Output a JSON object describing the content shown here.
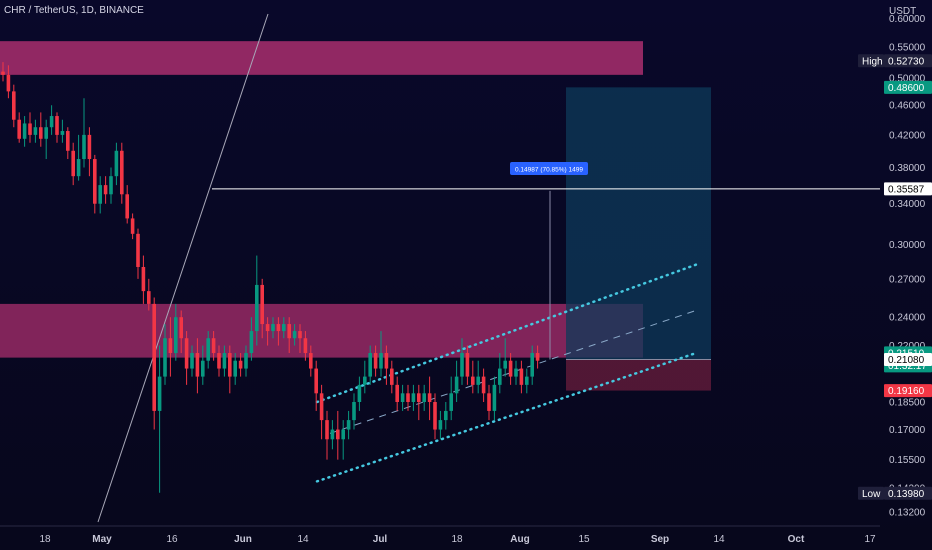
{
  "header": {
    "title": "CHR / TetherUS, 1D, BINANCE"
  },
  "axis": {
    "currency": "USDT"
  },
  "chart_data": {
    "type": "candlestick",
    "x_labels": [
      "18",
      "May",
      "16",
      "Jun",
      "14",
      "Jul",
      "18",
      "Aug",
      "15",
      "Sep",
      "14",
      "Oct",
      "17"
    ],
    "y_ticks": [
      "0.60000",
      "0.55000",
      "0.50000",
      "0.46000",
      "0.42000",
      "0.38000",
      "0.34000",
      "0.30000",
      "0.27000",
      "0.24000",
      "0.22000",
      "0.18500",
      "0.17000",
      "0.15500",
      "0.14200",
      "0.13200"
    ],
    "ylim": [
      0.128,
      0.62
    ],
    "y_scale": "log",
    "supply_zone_upper": {
      "low": 0.505,
      "high": 0.56
    },
    "supply_zone_lower": {
      "low": 0.212,
      "high": 0.25
    },
    "horizontal_line": 0.35587,
    "measure_label": "0.14987 (70.85%) 1499",
    "position": {
      "entry": 0.2108,
      "target": 0.486,
      "stop": 0.1916
    },
    "price_labels": [
      {
        "label": "High",
        "value": "0.52730",
        "color": "#1f1f3a"
      },
      {
        "label": "",
        "value": "0.48600",
        "color": "#089981"
      },
      {
        "label": "",
        "value": "0.35587",
        "color": "#ffffff"
      },
      {
        "label": "",
        "value": "0.21510",
        "sub": "01:32:17",
        "color": "#089981"
      },
      {
        "label": "",
        "value": "0.21080",
        "color": "#ffffff"
      },
      {
        "label": "",
        "value": "0.19160",
        "color": "#f23645"
      },
      {
        "label": "Low",
        "value": "0.13980",
        "color": "#1f1f3a"
      }
    ],
    "colors": {
      "up": "#089981",
      "down": "#f23645",
      "zone": "#b03070",
      "channel": "#45c8e0"
    },
    "candles": [
      [
        0.51,
        0.505,
        0.525,
        0.495
      ],
      [
        0.505,
        0.48,
        0.52,
        0.47
      ],
      [
        0.48,
        0.44,
        0.49,
        0.43
      ],
      [
        0.44,
        0.415,
        0.45,
        0.41
      ],
      [
        0.415,
        0.435,
        0.445,
        0.405
      ],
      [
        0.435,
        0.42,
        0.45,
        0.41
      ],
      [
        0.42,
        0.43,
        0.44,
        0.41
      ],
      [
        0.43,
        0.415,
        0.45,
        0.405
      ],
      [
        0.415,
        0.43,
        0.44,
        0.39
      ],
      [
        0.43,
        0.445,
        0.46,
        0.42
      ],
      [
        0.445,
        0.42,
        0.45,
        0.41
      ],
      [
        0.42,
        0.425,
        0.44,
        0.41
      ],
      [
        0.425,
        0.4,
        0.43,
        0.39
      ],
      [
        0.4,
        0.37,
        0.41,
        0.36
      ],
      [
        0.37,
        0.39,
        0.42,
        0.365
      ],
      [
        0.39,
        0.42,
        0.47,
        0.38
      ],
      [
        0.42,
        0.39,
        0.43,
        0.37
      ],
      [
        0.39,
        0.34,
        0.395,
        0.33
      ],
      [
        0.34,
        0.36,
        0.37,
        0.33
      ],
      [
        0.36,
        0.35,
        0.37,
        0.34
      ],
      [
        0.35,
        0.37,
        0.38,
        0.34
      ],
      [
        0.37,
        0.4,
        0.41,
        0.36
      ],
      [
        0.4,
        0.35,
        0.41,
        0.34
      ],
      [
        0.35,
        0.325,
        0.36,
        0.32
      ],
      [
        0.325,
        0.31,
        0.33,
        0.305
      ],
      [
        0.31,
        0.28,
        0.315,
        0.27
      ],
      [
        0.28,
        0.26,
        0.29,
        0.25
      ],
      [
        0.26,
        0.25,
        0.27,
        0.245
      ],
      [
        0.25,
        0.18,
        0.255,
        0.17
      ],
      [
        0.18,
        0.2,
        0.22,
        0.14
      ],
      [
        0.2,
        0.225,
        0.235,
        0.195
      ],
      [
        0.225,
        0.215,
        0.24,
        0.2
      ],
      [
        0.215,
        0.24,
        0.25,
        0.21
      ],
      [
        0.24,
        0.225,
        0.245,
        0.215
      ],
      [
        0.225,
        0.205,
        0.23,
        0.195
      ],
      [
        0.205,
        0.215,
        0.22,
        0.2
      ],
      [
        0.215,
        0.2,
        0.225,
        0.19
      ],
      [
        0.2,
        0.21,
        0.22,
        0.195
      ],
      [
        0.21,
        0.225,
        0.23,
        0.205
      ],
      [
        0.225,
        0.215,
        0.23,
        0.21
      ],
      [
        0.215,
        0.205,
        0.22,
        0.2
      ],
      [
        0.205,
        0.215,
        0.22,
        0.2
      ],
      [
        0.215,
        0.2,
        0.22,
        0.19
      ],
      [
        0.2,
        0.21,
        0.215,
        0.195
      ],
      [
        0.21,
        0.205,
        0.215,
        0.2
      ],
      [
        0.205,
        0.215,
        0.22,
        0.2
      ],
      [
        0.215,
        0.23,
        0.24,
        0.21
      ],
      [
        0.23,
        0.265,
        0.29,
        0.22
      ],
      [
        0.265,
        0.235,
        0.27,
        0.225
      ],
      [
        0.235,
        0.23,
        0.24,
        0.22
      ],
      [
        0.23,
        0.235,
        0.24,
        0.225
      ],
      [
        0.235,
        0.23,
        0.24,
        0.22
      ],
      [
        0.23,
        0.235,
        0.24,
        0.225
      ],
      [
        0.235,
        0.225,
        0.24,
        0.215
      ],
      [
        0.225,
        0.23,
        0.235,
        0.22
      ],
      [
        0.23,
        0.225,
        0.235,
        0.215
      ],
      [
        0.225,
        0.215,
        0.23,
        0.21
      ],
      [
        0.215,
        0.205,
        0.22,
        0.2
      ],
      [
        0.205,
        0.19,
        0.21,
        0.18
      ],
      [
        0.19,
        0.175,
        0.195,
        0.165
      ],
      [
        0.175,
        0.165,
        0.18,
        0.155
      ],
      [
        0.165,
        0.17,
        0.175,
        0.16
      ],
      [
        0.17,
        0.165,
        0.18,
        0.155
      ],
      [
        0.165,
        0.17,
        0.175,
        0.155
      ],
      [
        0.17,
        0.175,
        0.18,
        0.165
      ],
      [
        0.175,
        0.185,
        0.19,
        0.17
      ],
      [
        0.185,
        0.195,
        0.2,
        0.18
      ],
      [
        0.195,
        0.2,
        0.21,
        0.19
      ],
      [
        0.2,
        0.215,
        0.22,
        0.195
      ],
      [
        0.215,
        0.205,
        0.22,
        0.2
      ],
      [
        0.205,
        0.215,
        0.23,
        0.2
      ],
      [
        0.215,
        0.205,
        0.22,
        0.195
      ],
      [
        0.205,
        0.195,
        0.21,
        0.19
      ],
      [
        0.195,
        0.185,
        0.2,
        0.18
      ],
      [
        0.185,
        0.19,
        0.195,
        0.18
      ],
      [
        0.19,
        0.185,
        0.195,
        0.18
      ],
      [
        0.185,
        0.19,
        0.195,
        0.18
      ],
      [
        0.19,
        0.185,
        0.195,
        0.175
      ],
      [
        0.185,
        0.19,
        0.195,
        0.18
      ],
      [
        0.19,
        0.185,
        0.2,
        0.175
      ],
      [
        0.185,
        0.17,
        0.19,
        0.165
      ],
      [
        0.17,
        0.175,
        0.18,
        0.165
      ],
      [
        0.175,
        0.18,
        0.185,
        0.17
      ],
      [
        0.18,
        0.19,
        0.2,
        0.175
      ],
      [
        0.19,
        0.2,
        0.21,
        0.185
      ],
      [
        0.2,
        0.215,
        0.225,
        0.195
      ],
      [
        0.215,
        0.2,
        0.22,
        0.195
      ],
      [
        0.2,
        0.195,
        0.21,
        0.19
      ],
      [
        0.195,
        0.2,
        0.21,
        0.19
      ],
      [
        0.2,
        0.19,
        0.205,
        0.185
      ],
      [
        0.19,
        0.18,
        0.195,
        0.175
      ],
      [
        0.18,
        0.195,
        0.2,
        0.175
      ],
      [
        0.195,
        0.205,
        0.215,
        0.19
      ],
      [
        0.205,
        0.21,
        0.225,
        0.2
      ],
      [
        0.21,
        0.2,
        0.215,
        0.195
      ],
      [
        0.2,
        0.205,
        0.21,
        0.195
      ],
      [
        0.205,
        0.195,
        0.21,
        0.19
      ],
      [
        0.195,
        0.2,
        0.205,
        0.19
      ],
      [
        0.2,
        0.215,
        0.22,
        0.195
      ],
      [
        0.215,
        0.21,
        0.22,
        0.205
      ]
    ]
  }
}
